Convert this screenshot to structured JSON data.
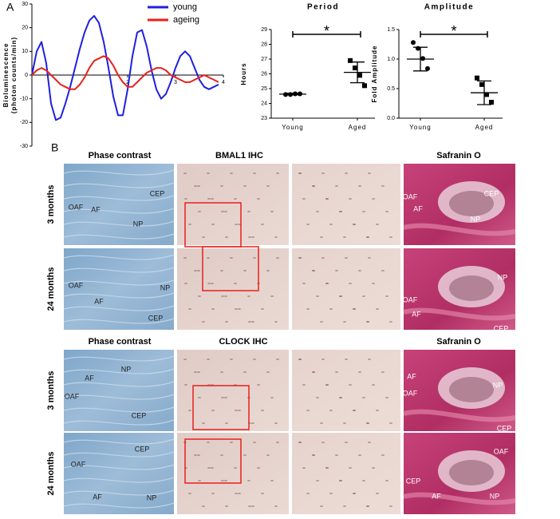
{
  "chart_data": [
    {
      "type": "line",
      "ylabel": [
        "Bioluminescence",
        "(photon counts/min)"
      ],
      "x": [
        0,
        0.1,
        0.2,
        0.3,
        0.4,
        0.5,
        0.6,
        0.7,
        0.8,
        0.9,
        1.0,
        1.1,
        1.2,
        1.3,
        1.4,
        1.5,
        1.6,
        1.7,
        1.8,
        1.9,
        2.0,
        2.1,
        2.2,
        2.3,
        2.4,
        2.5,
        2.6,
        2.7,
        2.8,
        2.9,
        3.0,
        3.1,
        3.2,
        3.3,
        3.4,
        3.5,
        3.6,
        3.7,
        3.8,
        3.9
      ],
      "series": [
        {
          "name": "young",
          "color": "#1f1fe0",
          "values": [
            0,
            10,
            14,
            5,
            -12,
            -19,
            -18,
            -12,
            -5,
            3,
            11,
            18,
            23,
            25,
            22,
            14,
            3,
            -9,
            -17,
            -17,
            -6,
            8,
            18,
            19,
            12,
            2,
            -6,
            -10,
            -8,
            -3,
            3,
            8,
            10,
            8,
            3,
            -2,
            -5,
            -6,
            -5,
            -4
          ]
        },
        {
          "name": "ageing",
          "color": "#e8201c",
          "values": [
            0,
            2,
            3,
            2,
            0,
            -2,
            -4,
            -5,
            -6,
            -6,
            -4,
            -1,
            3,
            6,
            7,
            8,
            7,
            4,
            0,
            -3,
            -5,
            -5,
            -3,
            -1,
            1,
            2,
            3,
            3,
            2,
            0,
            -1,
            -2,
            -3,
            -3,
            -2,
            -1,
            0,
            -1,
            -2,
            -3
          ]
        }
      ],
      "xlim": [
        0,
        4
      ],
      "xticks": [
        2,
        3,
        4
      ],
      "ylim": [
        -30,
        30
      ],
      "yticks": [
        -30,
        -20,
        -10,
        0,
        10,
        20,
        30
      ],
      "legend": "upper right"
    },
    {
      "type": "dot",
      "title": "Period",
      "ylabel": "Hours",
      "categories": [
        "Young",
        "Aged"
      ],
      "points": [
        [
          24.6,
          24.6,
          24.65,
          24.65
        ],
        [
          26.9,
          26.4,
          25.9,
          25.2
        ]
      ],
      "means": [
        24.63,
        26.1
      ],
      "sd": [
        0.05,
        0.7
      ],
      "markers": [
        "circle",
        "square"
      ],
      "ylim": [
        23,
        29
      ],
      "yticks": [
        23,
        24,
        25,
        26,
        27,
        28,
        29
      ],
      "annotation": "*"
    },
    {
      "type": "dot",
      "title": "Amplitude",
      "ylabel": "Fold Amplitude",
      "categories": [
        "Young",
        "Aged"
      ],
      "points": [
        [
          1.28,
          1.18,
          1.01,
          0.84
        ],
        [
          0.68,
          0.57,
          0.4,
          0.27
        ]
      ],
      "means": [
        1.0,
        0.43
      ],
      "sd": [
        0.2,
        0.2
      ],
      "markers": [
        "circle",
        "square"
      ],
      "ylim": [
        0,
        1.5
      ],
      "yticks": [
        {
          "value": 0,
          "label": "0.0"
        },
        0.5,
        {
          "value": 1,
          "label": "1.0"
        },
        1.5
      ],
      "annotation": "*"
    }
  ],
  "figure_labels": {
    "a": "A",
    "b": "B"
  },
  "blocks": [
    {
      "headers": [
        "Phase contrast",
        "BMAL1 IHC",
        "Safranin O"
      ],
      "rows": [
        {
          "label": "3 months",
          "phase": [
            "OAF",
            "AF",
            "NP",
            "CEP"
          ],
          "safranin": [
            "OAF",
            "CEP",
            "AF",
            "NP"
          ]
        },
        {
          "label": "24 months",
          "phase": [
            "OAF",
            "AF",
            "NP",
            "CEP"
          ],
          "safranin": [
            "OAF",
            "NP",
            "AF",
            "CEP"
          ]
        }
      ]
    },
    {
      "headers": [
        "Phase contrast",
        "CLOCK IHC",
        "Safranin O"
      ],
      "rows": [
        {
          "label": "3 months",
          "phase": [
            "AF",
            "NP",
            "OAF",
            "CEP"
          ],
          "safranin": [
            "AF",
            "OAF",
            "NP",
            "CEP"
          ]
        },
        {
          "label": "24 months",
          "phase": [
            "OAF",
            "CEP",
            "AF",
            "NP"
          ],
          "safranin": [
            "CEP",
            "OAF",
            "AF",
            "NP"
          ]
        }
      ]
    }
  ]
}
